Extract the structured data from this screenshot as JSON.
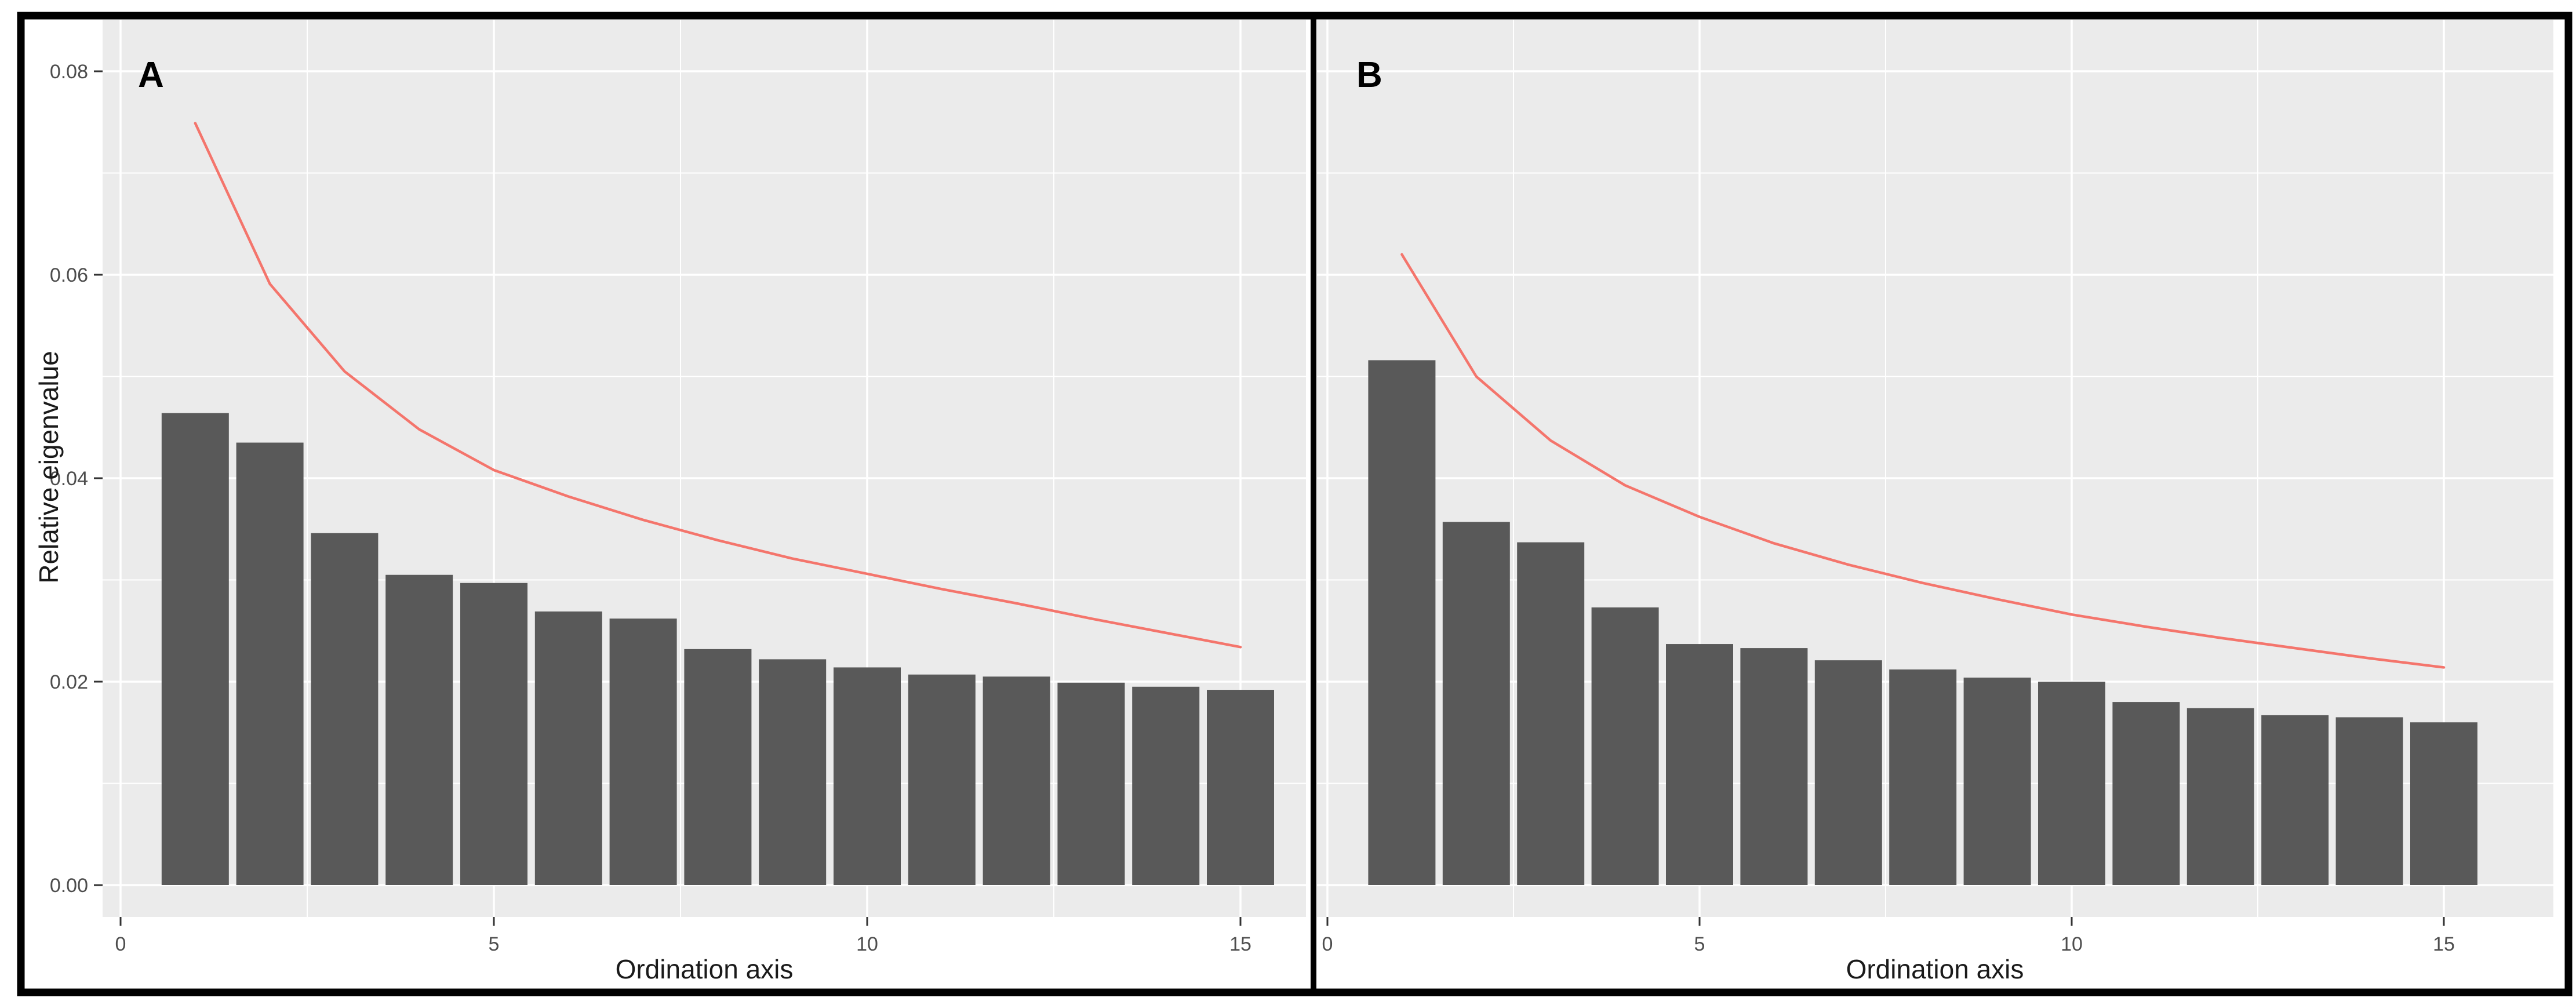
{
  "figure": {
    "description": "Two-panel scree plot of relative eigenvalues per ordination axis with broken-stick reference line",
    "panels": [
      {
        "label": "A"
      },
      {
        "label": "B"
      }
    ]
  },
  "style": {
    "outer_bg": "#FFFFFF",
    "frame_color": "#000000",
    "divider_color": "#000000",
    "panel_bg": "#EBEBEB",
    "grid_color": "#FFFFFF",
    "bar_color": "#595959",
    "line_color": "#F4756C",
    "tick_mark_color": "#333333",
    "tick_label_color": "#4D4D4D",
    "axis_title_color": "#1A1A1A",
    "panel_label_color": "#000000"
  },
  "chart_data": [
    {
      "type": "bar",
      "panel_label": "A",
      "title": "",
      "xlabel": "Ordination axis",
      "ylabel": "Relative eigenvalue",
      "x": [
        1,
        2,
        3,
        4,
        5,
        6,
        7,
        8,
        9,
        10,
        11,
        12,
        13,
        14,
        15
      ],
      "bars": {
        "name": "relative-eigenvalue-bars",
        "values": [
          0.0464,
          0.0435,
          0.0346,
          0.0305,
          0.0297,
          0.0269,
          0.0262,
          0.0232,
          0.0222,
          0.0214,
          0.0207,
          0.0205,
          0.0199,
          0.0195,
          0.0192
        ]
      },
      "line": {
        "name": "broken-stick-line",
        "values": [
          0.0749,
          0.0591,
          0.0505,
          0.0448,
          0.0408,
          0.0382,
          0.0359,
          0.0339,
          0.0321,
          0.0306,
          0.0291,
          0.0277,
          0.0262,
          0.0248,
          0.0234
        ]
      },
      "xticks": {
        "values": [
          0,
          5,
          10,
          15
        ],
        "labels": [
          "0",
          "5",
          "10",
          "15"
        ]
      },
      "yticks": {
        "values": [
          0,
          0.02,
          0.04,
          0.06,
          0.08
        ],
        "labels": [
          "0.00",
          "0.02",
          "0.04",
          "0.06",
          "0.08"
        ]
      },
      "minor_yticks": [
        0.01,
        0.03,
        0.05,
        0.07
      ],
      "minor_xticks": [
        2.5,
        7.5,
        12.5
      ],
      "xlim": [
        -0.25,
        15.7
      ],
      "ylim": [
        0,
        0.085
      ],
      "grid": true,
      "legend": "none",
      "show_y_tick_labels": true
    },
    {
      "type": "bar",
      "panel_label": "B",
      "title": "",
      "xlabel": "Ordination axis",
      "ylabel": "",
      "x": [
        1,
        2,
        3,
        4,
        5,
        6,
        7,
        8,
        9,
        10,
        11,
        12,
        13,
        14,
        15
      ],
      "bars": {
        "name": "relative-eigenvalue-bars",
        "values": [
          0.0516,
          0.0357,
          0.0337,
          0.0273,
          0.0237,
          0.0233,
          0.0221,
          0.0212,
          0.0204,
          0.02,
          0.018,
          0.0174,
          0.0167,
          0.0165,
          0.016
        ]
      },
      "line": {
        "name": "broken-stick-line",
        "values": [
          0.062,
          0.05,
          0.0437,
          0.0393,
          0.0362,
          0.0336,
          0.0315,
          0.0297,
          0.0281,
          0.0266,
          0.0254,
          0.0243,
          0.0233,
          0.0223,
          0.0214
        ]
      },
      "xticks": {
        "values": [
          0,
          5,
          10,
          15
        ],
        "labels": [
          "0",
          "5",
          "10",
          "15"
        ]
      },
      "yticks": {
        "values": [
          0,
          0.02,
          0.04,
          0.06,
          0.08
        ],
        "labels": [
          "0.00",
          "0.02",
          "0.04",
          "0.06",
          "0.08"
        ]
      },
      "minor_yticks": [
        0.01,
        0.03,
        0.05,
        0.07
      ],
      "minor_xticks": [
        2.5,
        7.5,
        12.5
      ],
      "xlim": [
        -0.25,
        15.7
      ],
      "ylim": [
        0,
        0.085
      ],
      "grid": true,
      "legend": "none",
      "show_y_tick_labels": false
    }
  ]
}
